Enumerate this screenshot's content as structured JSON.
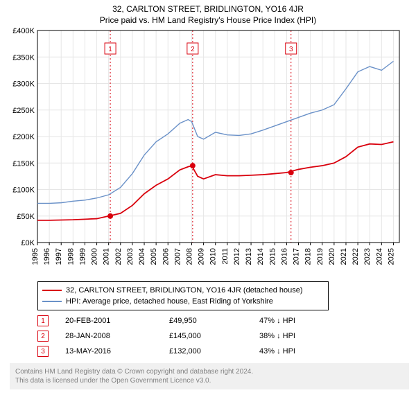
{
  "title": "32, CARLTON STREET, BRIDLINGTON, YO16 4JR",
  "subtitle": "Price paid vs. HM Land Registry's House Price Index (HPI)",
  "chart": {
    "type": "line",
    "background_color": "#ffffff",
    "grid_color": "#e6e6e6",
    "plot_border_color": "#000000",
    "xlim": [
      1995,
      2025.5
    ],
    "ylim": [
      0,
      400000
    ],
    "ytick_step": 50000,
    "yticks_labels": [
      "£0K",
      "£50K",
      "£100K",
      "£150K",
      "£200K",
      "£250K",
      "£300K",
      "£350K",
      "£400K"
    ],
    "xticks": [
      1995,
      1996,
      1997,
      1998,
      1999,
      2000,
      2001,
      2002,
      2003,
      2004,
      2005,
      2006,
      2007,
      2008,
      2009,
      2010,
      2011,
      2012,
      2013,
      2014,
      2015,
      2016,
      2017,
      2018,
      2019,
      2020,
      2021,
      2022,
      2023,
      2024,
      2025
    ],
    "x_rotation_deg": 90,
    "label_fontsize": 11,
    "series": [
      {
        "name": "subject_property",
        "label": "32, CARLTON STREET, BRIDLINGTON, YO16 4JR (detached house)",
        "color": "#d9000d",
        "line_width": 1.8,
        "data": [
          [
            1995,
            42000
          ],
          [
            1996,
            42000
          ],
          [
            1997,
            42500
          ],
          [
            1998,
            43000
          ],
          [
            1999,
            44000
          ],
          [
            2000,
            45000
          ],
          [
            2001,
            49950
          ],
          [
            2002,
            55000
          ],
          [
            2003,
            70000
          ],
          [
            2004,
            92000
          ],
          [
            2005,
            108000
          ],
          [
            2006,
            120000
          ],
          [
            2007,
            137000
          ],
          [
            2007.7,
            143000
          ],
          [
            2008,
            145000
          ],
          [
            2008.5,
            125000
          ],
          [
            2009,
            120000
          ],
          [
            2010,
            128000
          ],
          [
            2011,
            126000
          ],
          [
            2012,
            126000
          ],
          [
            2013,
            127000
          ],
          [
            2014,
            128000
          ],
          [
            2015,
            130000
          ],
          [
            2016,
            132000
          ],
          [
            2017,
            138000
          ],
          [
            2018,
            142000
          ],
          [
            2019,
            145000
          ],
          [
            2020,
            150000
          ],
          [
            2021,
            162000
          ],
          [
            2022,
            180000
          ],
          [
            2023,
            186000
          ],
          [
            2024,
            185000
          ],
          [
            2025,
            190000
          ]
        ]
      },
      {
        "name": "hpi",
        "label": "HPI: Average price, detached house, East Riding of Yorkshire",
        "color": "#6a91c8",
        "line_width": 1.4,
        "data": [
          [
            1995,
            74000
          ],
          [
            1996,
            74000
          ],
          [
            1997,
            75000
          ],
          [
            1998,
            78000
          ],
          [
            1999,
            80000
          ],
          [
            2000,
            84000
          ],
          [
            2001,
            90000
          ],
          [
            2002,
            104000
          ],
          [
            2003,
            130000
          ],
          [
            2004,
            165000
          ],
          [
            2005,
            190000
          ],
          [
            2006,
            205000
          ],
          [
            2007,
            225000
          ],
          [
            2007.7,
            232000
          ],
          [
            2008,
            228000
          ],
          [
            2008.5,
            200000
          ],
          [
            2009,
            195000
          ],
          [
            2010,
            208000
          ],
          [
            2011,
            203000
          ],
          [
            2012,
            202000
          ],
          [
            2013,
            205000
          ],
          [
            2014,
            212000
          ],
          [
            2015,
            220000
          ],
          [
            2016,
            228000
          ],
          [
            2017,
            236000
          ],
          [
            2018,
            244000
          ],
          [
            2019,
            250000
          ],
          [
            2020,
            260000
          ],
          [
            2021,
            290000
          ],
          [
            2022,
            322000
          ],
          [
            2023,
            332000
          ],
          [
            2024,
            325000
          ],
          [
            2025,
            342000
          ]
        ]
      }
    ],
    "event_markers": [
      {
        "n": "1",
        "x": 2001.14,
        "color": "#d9000d",
        "price_y": 49950
      },
      {
        "n": "2",
        "x": 2008.08,
        "color": "#d9000d",
        "price_y": 145000
      },
      {
        "n": "3",
        "x": 2016.37,
        "color": "#d9000d",
        "price_y": 132000
      }
    ]
  },
  "legend": {
    "border_color": "#000000",
    "items": [
      {
        "color": "#d9000d",
        "label": "32, CARLTON STREET, BRIDLINGTON, YO16 4JR (detached house)"
      },
      {
        "color": "#6a91c8",
        "label": "HPI: Average price, detached house, East Riding of Yorkshire"
      }
    ]
  },
  "events_table": {
    "rows": [
      {
        "n": "1",
        "badge_color": "#d9000d",
        "date": "20-FEB-2001",
        "price": "£49,950",
        "delta": "47% ↓ HPI"
      },
      {
        "n": "2",
        "badge_color": "#d9000d",
        "date": "28-JAN-2008",
        "price": "£145,000",
        "delta": "38% ↓ HPI"
      },
      {
        "n": "3",
        "badge_color": "#d9000d",
        "date": "13-MAY-2016",
        "price": "£132,000",
        "delta": "43% ↓ HPI"
      }
    ]
  },
  "footer": {
    "line1": "Contains HM Land Registry data © Crown copyright and database right 2024.",
    "line2": "This data is licensed under the Open Government Licence v3.0."
  }
}
